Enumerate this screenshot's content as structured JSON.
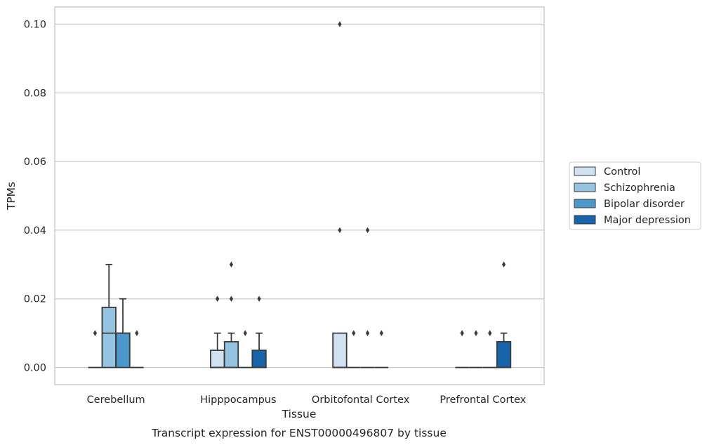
{
  "chart_data": {
    "type": "box",
    "xlabel": "Tissue",
    "ylabel": "TPMs",
    "caption": "Transcript expression for ENST00000496807 by tissue",
    "ylim": [
      -0.005,
      0.105
    ],
    "yticks": [
      0.0,
      0.02,
      0.04,
      0.06,
      0.08,
      0.1
    ],
    "ytick_labels": [
      "0.00",
      "0.02",
      "0.04",
      "0.06",
      "0.08",
      "0.10"
    ],
    "grid": true,
    "legend_position": "right",
    "categories": [
      "Cerebellum",
      "Hipppocampus",
      "Orbitofontal Cortex",
      "Prefrontal Cortex"
    ],
    "series": [
      {
        "name": "Control",
        "color": "#d0e1f2",
        "boxes": [
          {
            "q1": 0,
            "median": 0,
            "q3": 0,
            "whisker_low": 0,
            "whisker_high": 0,
            "outliers": [
              0.01
            ]
          },
          {
            "q1": 0,
            "median": 0,
            "q3": 0.005,
            "whisker_low": 0,
            "whisker_high": 0.01,
            "outliers": [
              0.02,
              0.02
            ]
          },
          {
            "q1": 0,
            "median": 0,
            "q3": 0.01,
            "whisker_low": 0,
            "whisker_high": 0.01,
            "outliers": [
              0.04,
              0.1
            ]
          },
          {
            "q1": 0,
            "median": 0,
            "q3": 0,
            "whisker_low": 0,
            "whisker_high": 0,
            "outliers": [
              0.01,
              0.01
            ]
          }
        ]
      },
      {
        "name": "Schizophrenia",
        "color": "#94c4df",
        "boxes": [
          {
            "q1": 0,
            "median": 0.01,
            "q3": 0.0175,
            "whisker_low": 0,
            "whisker_high": 0.03,
            "outliers": []
          },
          {
            "q1": 0,
            "median": 0,
            "q3": 0.0075,
            "whisker_low": 0,
            "whisker_high": 0.01,
            "outliers": [
              0.02,
              0.03
            ]
          },
          {
            "q1": 0,
            "median": 0,
            "q3": 0,
            "whisker_low": 0,
            "whisker_high": 0,
            "outliers": [
              0.01
            ]
          },
          {
            "q1": 0,
            "median": 0,
            "q3": 0,
            "whisker_low": 0,
            "whisker_high": 0,
            "outliers": [
              0.01
            ]
          }
        ]
      },
      {
        "name": "Bipolar disorder",
        "color": "#4a98c9",
        "boxes": [
          {
            "q1": 0,
            "median": 0.01,
            "q3": 0.01,
            "whisker_low": 0,
            "whisker_high": 0.02,
            "outliers": []
          },
          {
            "q1": 0,
            "median": 0,
            "q3": 0,
            "whisker_low": 0,
            "whisker_high": 0,
            "outliers": [
              0.01
            ]
          },
          {
            "q1": 0,
            "median": 0,
            "q3": 0,
            "whisker_low": 0,
            "whisker_high": 0,
            "outliers": [
              0.01,
              0.04
            ]
          },
          {
            "q1": 0,
            "median": 0,
            "q3": 0,
            "whisker_low": 0,
            "whisker_high": 0,
            "outliers": [
              0.01
            ]
          }
        ]
      },
      {
        "name": "Major depression",
        "color": "#1764ab",
        "boxes": [
          {
            "q1": 0,
            "median": 0,
            "q3": 0,
            "whisker_low": 0,
            "whisker_high": 0,
            "outliers": [
              0.01
            ]
          },
          {
            "q1": 0,
            "median": 0,
            "q3": 0.005,
            "whisker_low": 0,
            "whisker_high": 0.01,
            "outliers": [
              0.02
            ]
          },
          {
            "q1": 0,
            "median": 0,
            "q3": 0,
            "whisker_low": 0,
            "whisker_high": 0,
            "outliers": [
              0.01
            ]
          },
          {
            "q1": 0,
            "median": 0,
            "q3": 0.0075,
            "whisker_low": 0,
            "whisker_high": 0.01,
            "outliers": [
              0.03
            ]
          }
        ]
      }
    ]
  }
}
